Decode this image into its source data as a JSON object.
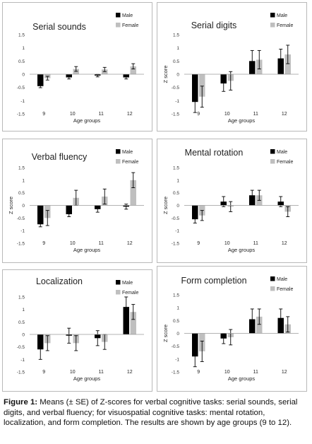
{
  "chart_data": [
    {
      "type": "bar",
      "title": "Serial sounds",
      "xlabel": "Age groups",
      "ylabel": "",
      "ylim": [
        -1.5,
        1.5
      ],
      "yticks": [
        "1.5",
        "1",
        "0.5",
        "0",
        "-0.5",
        "-1",
        "-1.5"
      ],
      "categories": [
        "9",
        "10",
        "11",
        "12"
      ],
      "legend": "top-right",
      "series": [
        {
          "name": "Male",
          "values": [
            -0.45,
            -0.12,
            -0.05,
            -0.12
          ],
          "se": [
            0.06,
            0.06,
            0.05,
            0.06
          ]
        },
        {
          "name": "Female",
          "values": [
            -0.15,
            0.2,
            0.18,
            0.3
          ],
          "se": [
            0.07,
            0.09,
            0.08,
            0.1
          ]
        }
      ]
    },
    {
      "type": "bar",
      "title": "Serial digits",
      "xlabel": "Age groups",
      "ylabel": "Z score",
      "ylim": [
        -1.5,
        1.5
      ],
      "yticks": [
        "1.5",
        "1",
        "0.5",
        "0",
        "-0.5",
        "-1",
        "-1.5"
      ],
      "categories": [
        "9",
        "10",
        "11",
        "12"
      ],
      "legend": "top-right",
      "series": [
        {
          "name": "Male",
          "values": [
            -1.05,
            -0.35,
            0.5,
            0.6
          ],
          "se": [
            0.4,
            0.3,
            0.4,
            0.35
          ]
        },
        {
          "name": "Female",
          "values": [
            -0.85,
            -0.25,
            0.55,
            0.75
          ],
          "se": [
            0.4,
            0.35,
            0.35,
            0.35
          ]
        }
      ]
    },
    {
      "type": "bar",
      "title": "Verbal fluency",
      "xlabel": "Age groups",
      "ylabel": "Z score",
      "ylim": [
        -1.5,
        1.5
      ],
      "yticks": [
        "1.5",
        "1",
        "0.5",
        "0",
        "-0.5",
        "-1",
        "-1.5"
      ],
      "categories": [
        "9",
        "10",
        "11",
        "12"
      ],
      "legend": "top-right",
      "series": [
        {
          "name": "Male",
          "values": [
            -0.75,
            -0.35,
            -0.15,
            -0.05
          ],
          "se": [
            0.1,
            0.1,
            0.12,
            0.1
          ]
        },
        {
          "name": "Female",
          "values": [
            -0.5,
            0.3,
            0.35,
            1.0
          ],
          "se": [
            0.3,
            0.3,
            0.3,
            0.3
          ]
        }
      ]
    },
    {
      "type": "bar",
      "title": "Mental rotation",
      "xlabel": "Age groups",
      "ylabel": "Z score",
      "ylim": [
        -1.5,
        1.5
      ],
      "yticks": [
        "1.5",
        "1",
        "0.5",
        "0",
        "-0.5",
        "-1",
        "-1.5"
      ],
      "categories": [
        "9",
        "10",
        "11",
        "12"
      ],
      "legend": "top-right",
      "series": [
        {
          "name": "Male",
          "values": [
            -0.55,
            0.15,
            0.4,
            0.15
          ],
          "se": [
            0.15,
            0.2,
            0.2,
            0.2
          ]
        },
        {
          "name": "Female",
          "values": [
            -0.4,
            -0.05,
            0.4,
            -0.25
          ],
          "se": [
            0.2,
            0.2,
            0.2,
            0.2
          ]
        }
      ]
    },
    {
      "type": "bar",
      "title": "Localization",
      "xlabel": "Age groups",
      "ylabel": "",
      "ylim": [
        -1.5,
        1.5
      ],
      "yticks": [
        "1.5",
        "1",
        "0.5",
        "0",
        "-0.5",
        "-1",
        "-1.5"
      ],
      "categories": [
        "9",
        "10",
        "11",
        "12"
      ],
      "legend": "top-right",
      "series": [
        {
          "name": "Male",
          "values": [
            -0.6,
            -0.05,
            -0.15,
            1.1
          ],
          "se": [
            0.4,
            0.3,
            0.3,
            0.4
          ]
        },
        {
          "name": "Female",
          "values": [
            -0.35,
            -0.35,
            -0.3,
            0.9
          ],
          "se": [
            0.3,
            0.3,
            0.3,
            0.3
          ]
        }
      ]
    },
    {
      "type": "bar",
      "title": "Form completion",
      "xlabel": "Age groups",
      "ylabel": "Z score",
      "ylim": [
        -1.5,
        1.5
      ],
      "yticks": [
        "1.5",
        "1",
        "0.5",
        "0",
        "-0.5",
        "-1",
        "-1.5"
      ],
      "categories": [
        "9",
        "10",
        "11",
        "12"
      ],
      "legend": "top-right",
      "series": [
        {
          "name": "Male",
          "values": [
            -0.9,
            -0.2,
            0.55,
            0.6
          ],
          "se": [
            0.4,
            0.2,
            0.4,
            0.35
          ]
        },
        {
          "name": "Female",
          "values": [
            -0.7,
            -0.15,
            0.65,
            0.35
          ],
          "se": [
            0.4,
            0.3,
            0.3,
            0.3
          ]
        }
      ]
    }
  ],
  "colors": {
    "male": "#000000",
    "female": "#bfbfbf",
    "error_bar": "#000000"
  },
  "caption": {
    "label": "Figure 1:",
    "text": " Means (± SE) of Z-scores for verbal cognitive tasks: serial sounds, serial digits, and verbal fluency; for visuospatial cognitive tasks: mental rotation, localization, and form completion. The results are shown by age groups (9 to 12)."
  }
}
